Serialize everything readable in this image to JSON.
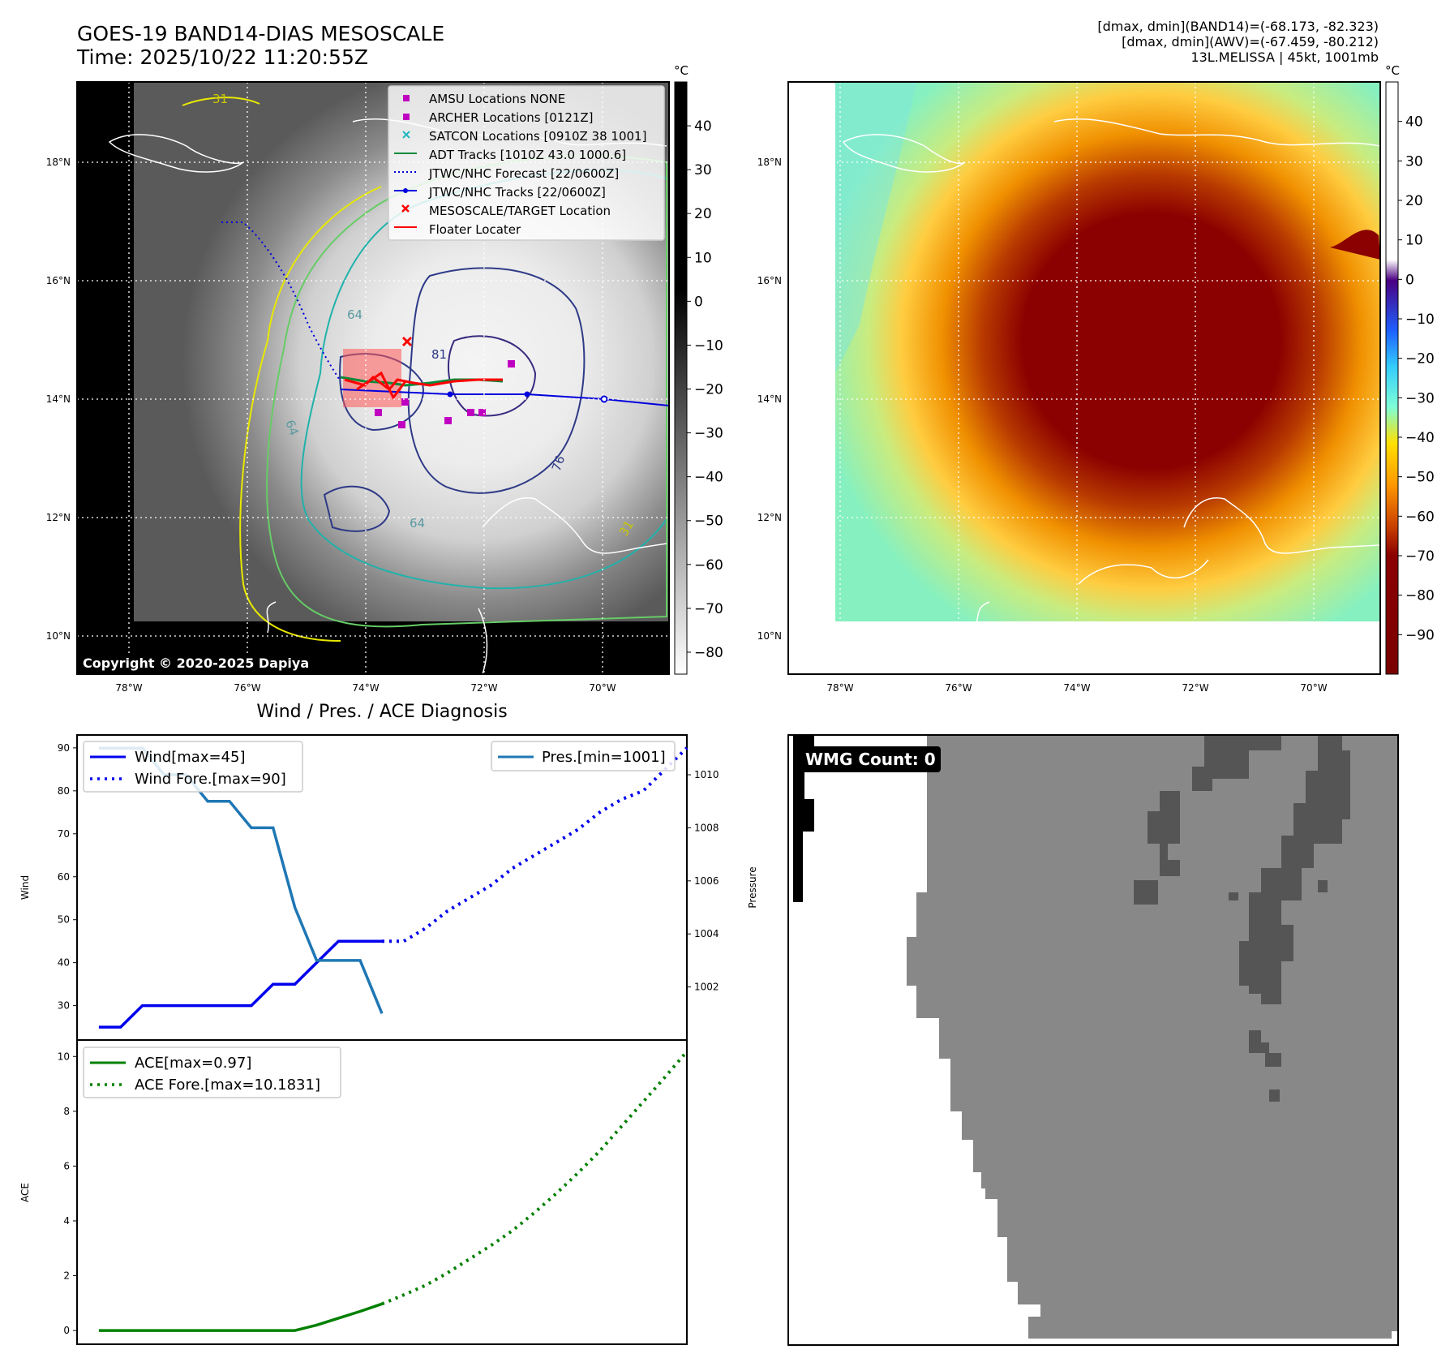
{
  "header": {
    "title_line1": "GOES-19 BAND14-DIAS MESOSCALE",
    "title_line2": "Time: 2025/10/22 11:20:55Z",
    "right_line1": "[dmax, dmin](BAND14)=(-68.173, -82.323)",
    "right_line2": "[dmax, dmin](AWV)=(-67.459, -80.212)",
    "right_line3": "13L.MELISSA | 45kt, 1001mb"
  },
  "map_axes": {
    "lon_ticks": [
      "78°W",
      "76°W",
      "74°W",
      "72°W",
      "70°W"
    ],
    "lat_ticks": [
      "18°N",
      "16°N",
      "14°N",
      "12°N",
      "10°N"
    ],
    "lon_range": [
      -78.9,
      -68.9
    ],
    "lat_range": [
      9.4,
      19.4
    ]
  },
  "colorbar1": {
    "unit": "°C",
    "ticks": [
      "40",
      "30",
      "20",
      "10",
      "0",
      "−10",
      "−20",
      "−30",
      "−40",
      "−50",
      "−60",
      "−70",
      "−80"
    ],
    "range": [
      -85,
      50
    ]
  },
  "colorbar2": {
    "unit": "°C",
    "ticks": [
      "40",
      "30",
      "20",
      "10",
      "0",
      "−10",
      "−20",
      "−30",
      "−40",
      "−50",
      "−60",
      "−70",
      "−80",
      "−90"
    ],
    "range": [
      -100,
      50
    ]
  },
  "map_legend": [
    {
      "label": "AMSU Locations NONE",
      "style": "square",
      "color": "#c000c0"
    },
    {
      "label": "ARCHER Locations [0121Z]",
      "style": "square",
      "color": "#c000c0"
    },
    {
      "label": "SATCON Locations [0910Z 38 1001]",
      "style": "x",
      "color": "#1fb8c0"
    },
    {
      "label": "ADT Tracks [1010Z 43.0 1000.6]",
      "style": "line",
      "color": "#0a8a3a"
    },
    {
      "label": "JTWC/NHC Forecast [22/0600Z]",
      "style": "dotted",
      "color": "#0000dd"
    },
    {
      "label": "JTWC/NHC Tracks [22/0600Z]",
      "style": "line-dot",
      "color": "#0000dd"
    },
    {
      "label": "MESOSCALE/TARGET Location",
      "style": "x",
      "color": "#ff0000"
    },
    {
      "label": "Floater Locater",
      "style": "line",
      "color": "#ff0000"
    }
  ],
  "contour_labels": [
    "31",
    "64",
    "81",
    "76",
    "64",
    "31",
    "64"
  ],
  "copyright": "Copyright © 2020-2025 Dapiya",
  "diagnosis_title": "Wind / Pres. / ACE Diagnosis",
  "wmg_label": "WMG Count: 0",
  "colors": {
    "wind": "#0000ee",
    "pressure": "#1f77b4",
    "ace": "#008000",
    "wmg_land": "#888888",
    "wmg_cold": "#555555"
  },
  "chart_data": [
    {
      "type": "line",
      "panel": "wind-pressure",
      "ylabel": "Wind",
      "y2label": "Pressure",
      "ylim": [
        22,
        93
      ],
      "y2lim": [
        1000.0,
        1011.5
      ],
      "xlim": [
        -1,
        27
      ],
      "yticks": [
        30,
        40,
        50,
        60,
        70,
        80,
        90
      ],
      "y2ticks": [
        1002,
        1004,
        1006,
        1008,
        1010
      ],
      "series": [
        {
          "name": "Wind[max=45]",
          "axis": "left",
          "style": "solid",
          "x": [
            0,
            1,
            2,
            3,
            4,
            5,
            6,
            7,
            8,
            9,
            10,
            11,
            12,
            13
          ],
          "y": [
            25,
            25,
            30,
            30,
            30,
            30,
            30,
            30,
            35,
            35,
            40,
            45,
            45,
            45
          ]
        },
        {
          "name": "Wind Fore.[max=90]",
          "axis": "left",
          "style": "dotted",
          "x": [
            13,
            14,
            15,
            16,
            17,
            18,
            19,
            20,
            21,
            22,
            23,
            24,
            25,
            26,
            27
          ],
          "y": [
            45,
            45,
            48,
            52,
            55,
            58,
            62,
            65,
            68,
            71,
            75,
            78,
            80,
            85,
            90
          ]
        },
        {
          "name": "Pres.[min=1001]",
          "axis": "right",
          "style": "solid",
          "x": [
            0,
            1,
            2,
            3,
            4,
            5,
            6,
            7,
            8,
            9,
            10,
            11,
            12,
            13
          ],
          "y": [
            1011,
            1011,
            1011,
            1010,
            1010,
            1009,
            1009,
            1008,
            1008,
            1005,
            1003,
            1003,
            1003,
            1001
          ]
        }
      ]
    },
    {
      "type": "line",
      "panel": "ace",
      "ylabel": "ACE",
      "ylim": [
        -0.5,
        10.6
      ],
      "xlim": [
        -1,
        27
      ],
      "yticks": [
        0,
        2,
        4,
        6,
        8,
        10
      ],
      "series": [
        {
          "name": "ACE[max=0.97]",
          "style": "solid",
          "x": [
            0,
            1,
            2,
            3,
            4,
            5,
            6,
            7,
            8,
            9,
            10,
            11,
            12,
            13
          ],
          "y": [
            0,
            0,
            0,
            0,
            0,
            0,
            0,
            0,
            0,
            0,
            0.2,
            0.45,
            0.7,
            0.97
          ]
        },
        {
          "name": "ACE Fore.[max=10.1831]",
          "style": "dotted",
          "x": [
            13,
            14,
            15,
            16,
            17,
            18,
            19,
            20,
            21,
            22,
            23,
            24,
            25,
            26,
            27
          ],
          "y": [
            0.97,
            1.3,
            1.65,
            2.1,
            2.6,
            3.1,
            3.65,
            4.3,
            5.0,
            5.75,
            6.55,
            7.45,
            8.35,
            9.25,
            10.18
          ]
        }
      ]
    }
  ]
}
